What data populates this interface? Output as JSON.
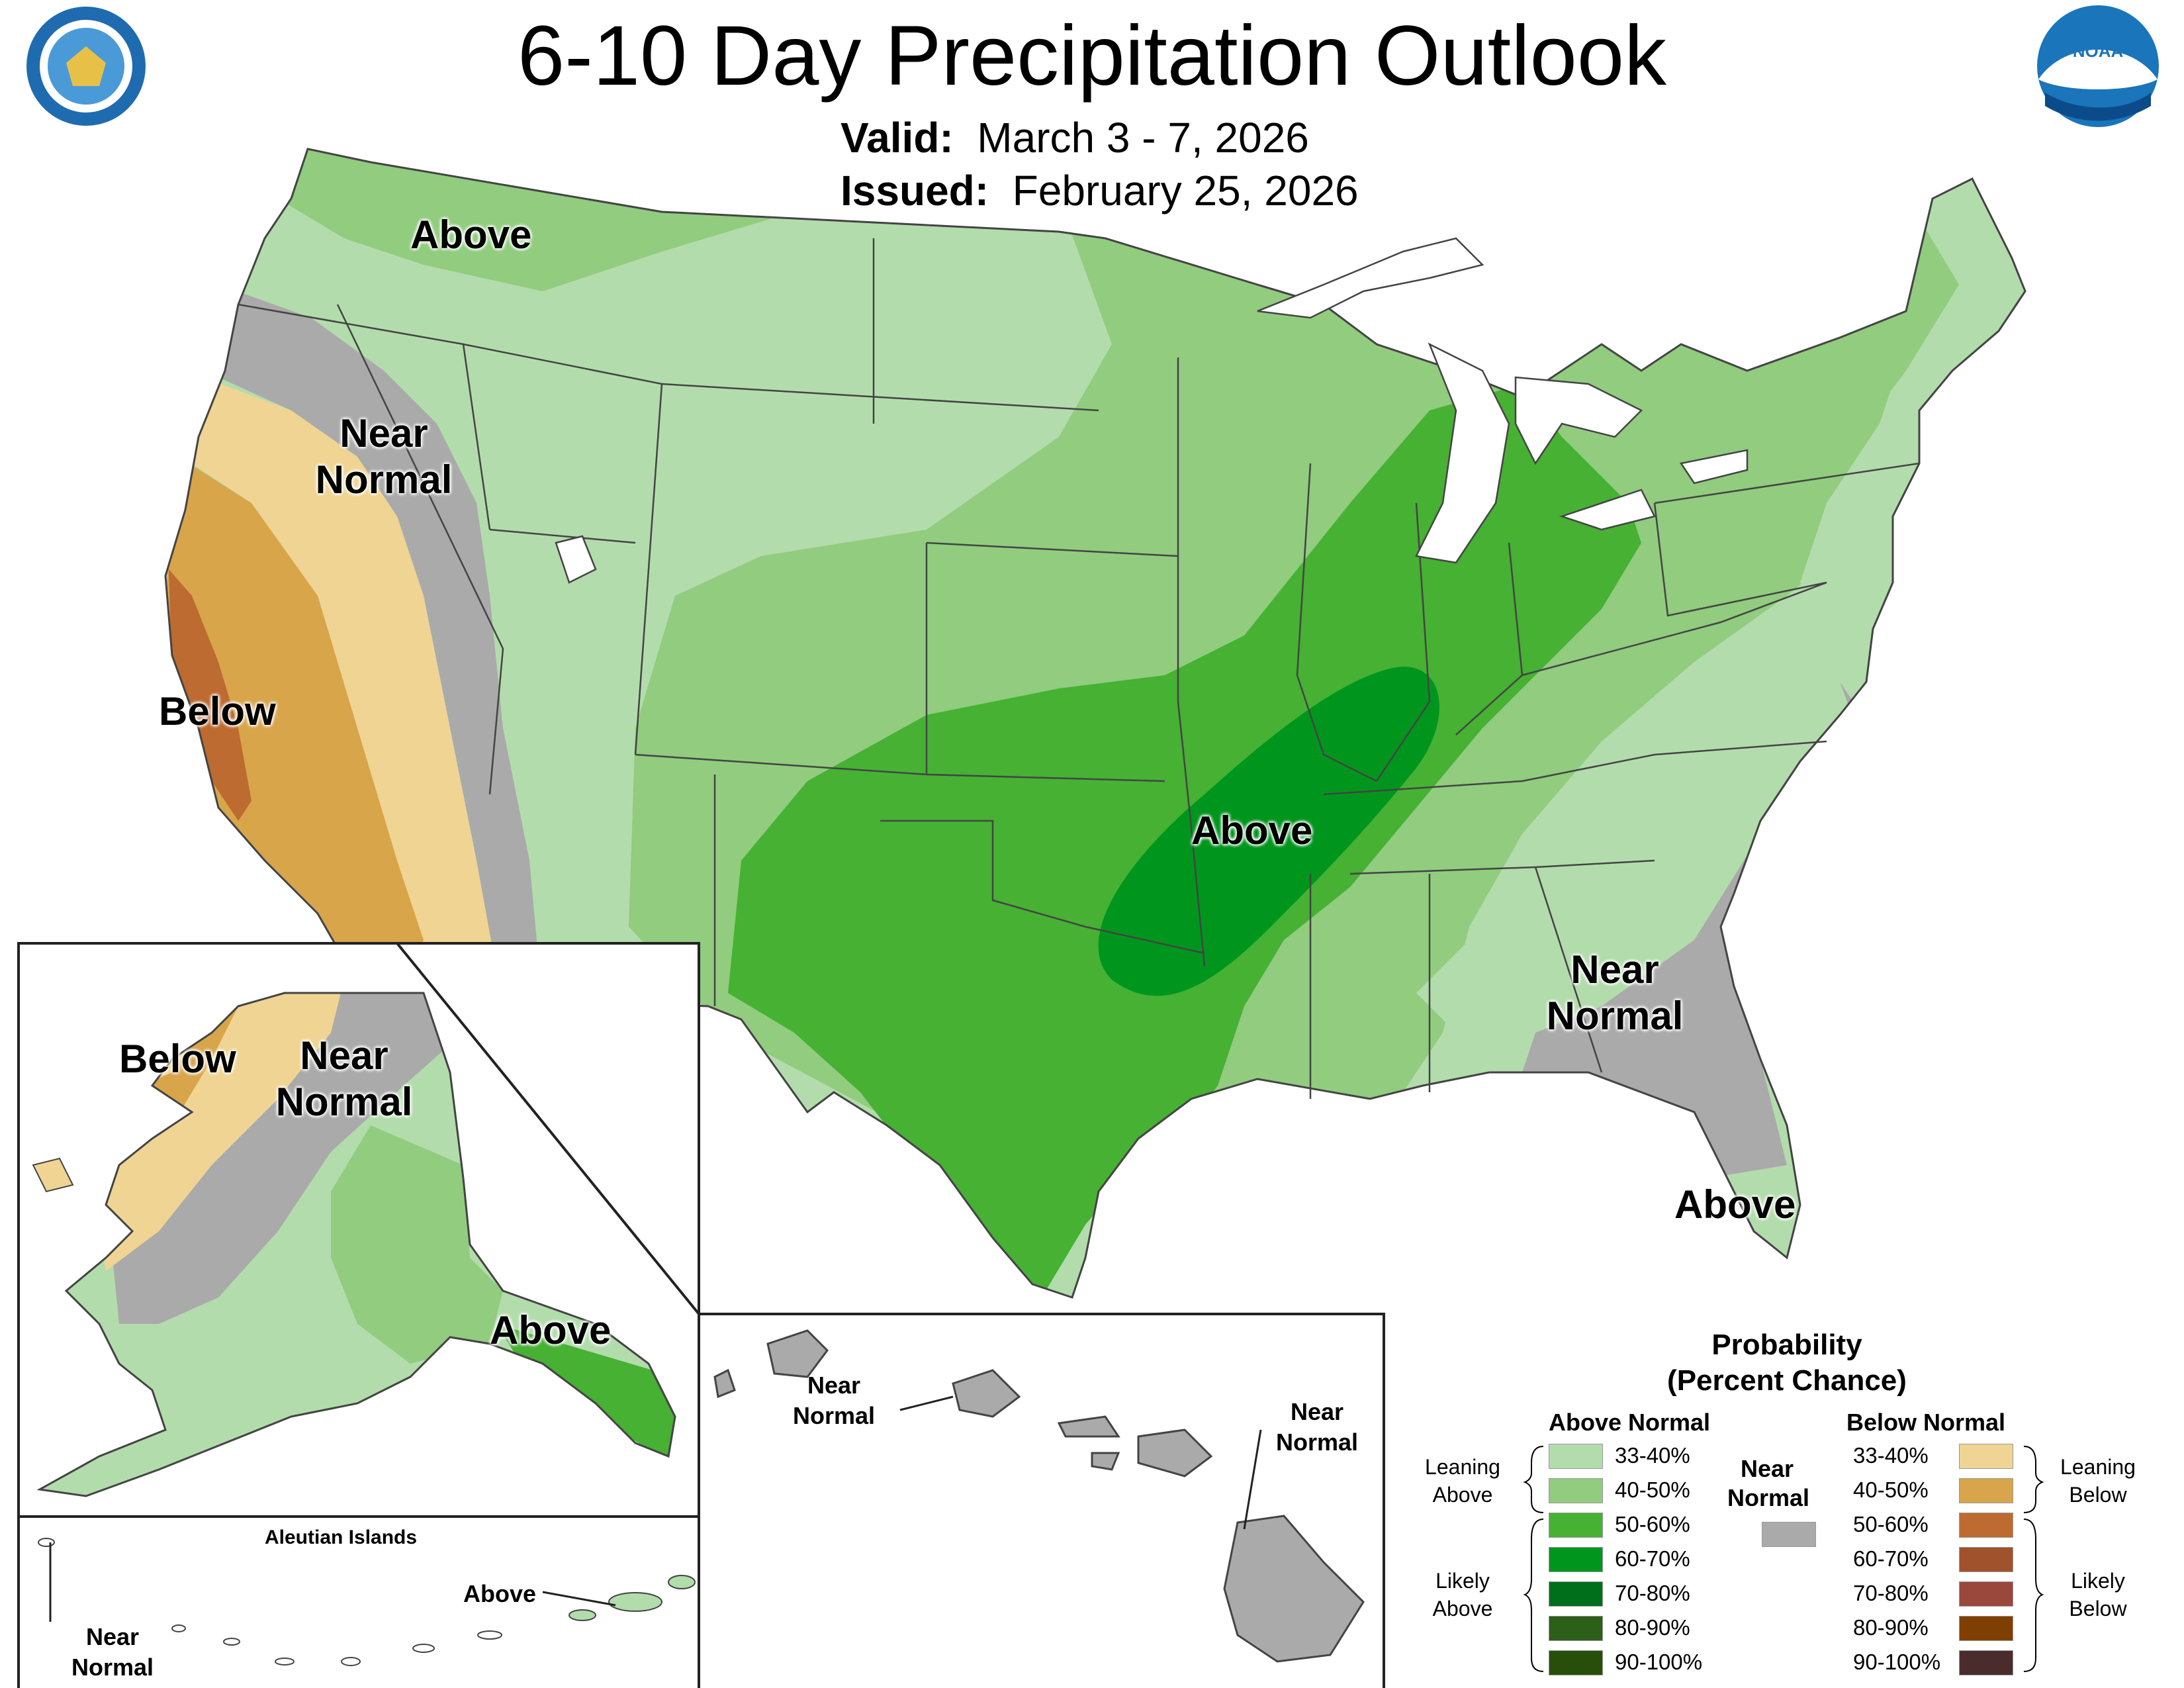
{
  "title": "6-10 Day Precipitation Outlook",
  "valid": {
    "label": "Valid:",
    "value": "March 3 - 7, 2026"
  },
  "issued": {
    "label": "Issued:",
    "value": "February 25, 2026"
  },
  "logos": {
    "left": "department-of-commerce-seal",
    "right": "noaa-logo",
    "noaa_text": "NOAA"
  },
  "colors": {
    "above_33_40": "#b3dcac",
    "above_40_50": "#91cc7f",
    "above_50_60": "#46b133",
    "above_60_70": "#00961d",
    "above_70_80": "#006f1b",
    "above_80_90": "#2c5f18",
    "above_90_100": "#284f0a",
    "near_normal": "#aaaaaa",
    "below_33_40": "#f0d493",
    "below_40_50": "#d8a54b",
    "below_50_60": "#bd6b30",
    "below_60_70": "#a0522d",
    "below_70_80": "#9a473c",
    "below_80_90": "#7f3f00",
    "below_90_100": "#4a2c2c"
  },
  "map_labels": {
    "conus_above_nw": "Above",
    "conus_near_normal_west": "Near Normal",
    "conus_below_ca": "Below",
    "conus_above_central": "Above",
    "conus_near_normal_se": "Near Normal",
    "conus_above_fl": "Above",
    "ak_below": "Below",
    "ak_near_normal": "Near Normal",
    "ak_above": "Above",
    "aleutian_title": "Aleutian Islands",
    "aleutian_above": "Above",
    "aleutian_near_normal": "Near Normal",
    "hi_near_normal_1": "Near Normal",
    "hi_near_normal_2": "Near Normal"
  },
  "legend": {
    "title_line1": "Probability",
    "title_line2": "(Percent Chance)",
    "above_header": "Above Normal",
    "below_header": "Below Normal",
    "near_header": "Near Normal",
    "above_rows": [
      "33-40%",
      "40-50%",
      "50-60%",
      "60-70%",
      "70-80%",
      "80-90%",
      "90-100%"
    ],
    "below_rows": [
      "33-40%",
      "40-50%",
      "50-60%",
      "60-70%",
      "70-80%",
      "80-90%",
      "90-100%"
    ],
    "leaning_above": "Leaning Above",
    "likely_above": "Likely Above",
    "leaning_below": "Leaning Below",
    "likely_below": "Likely Below"
  }
}
